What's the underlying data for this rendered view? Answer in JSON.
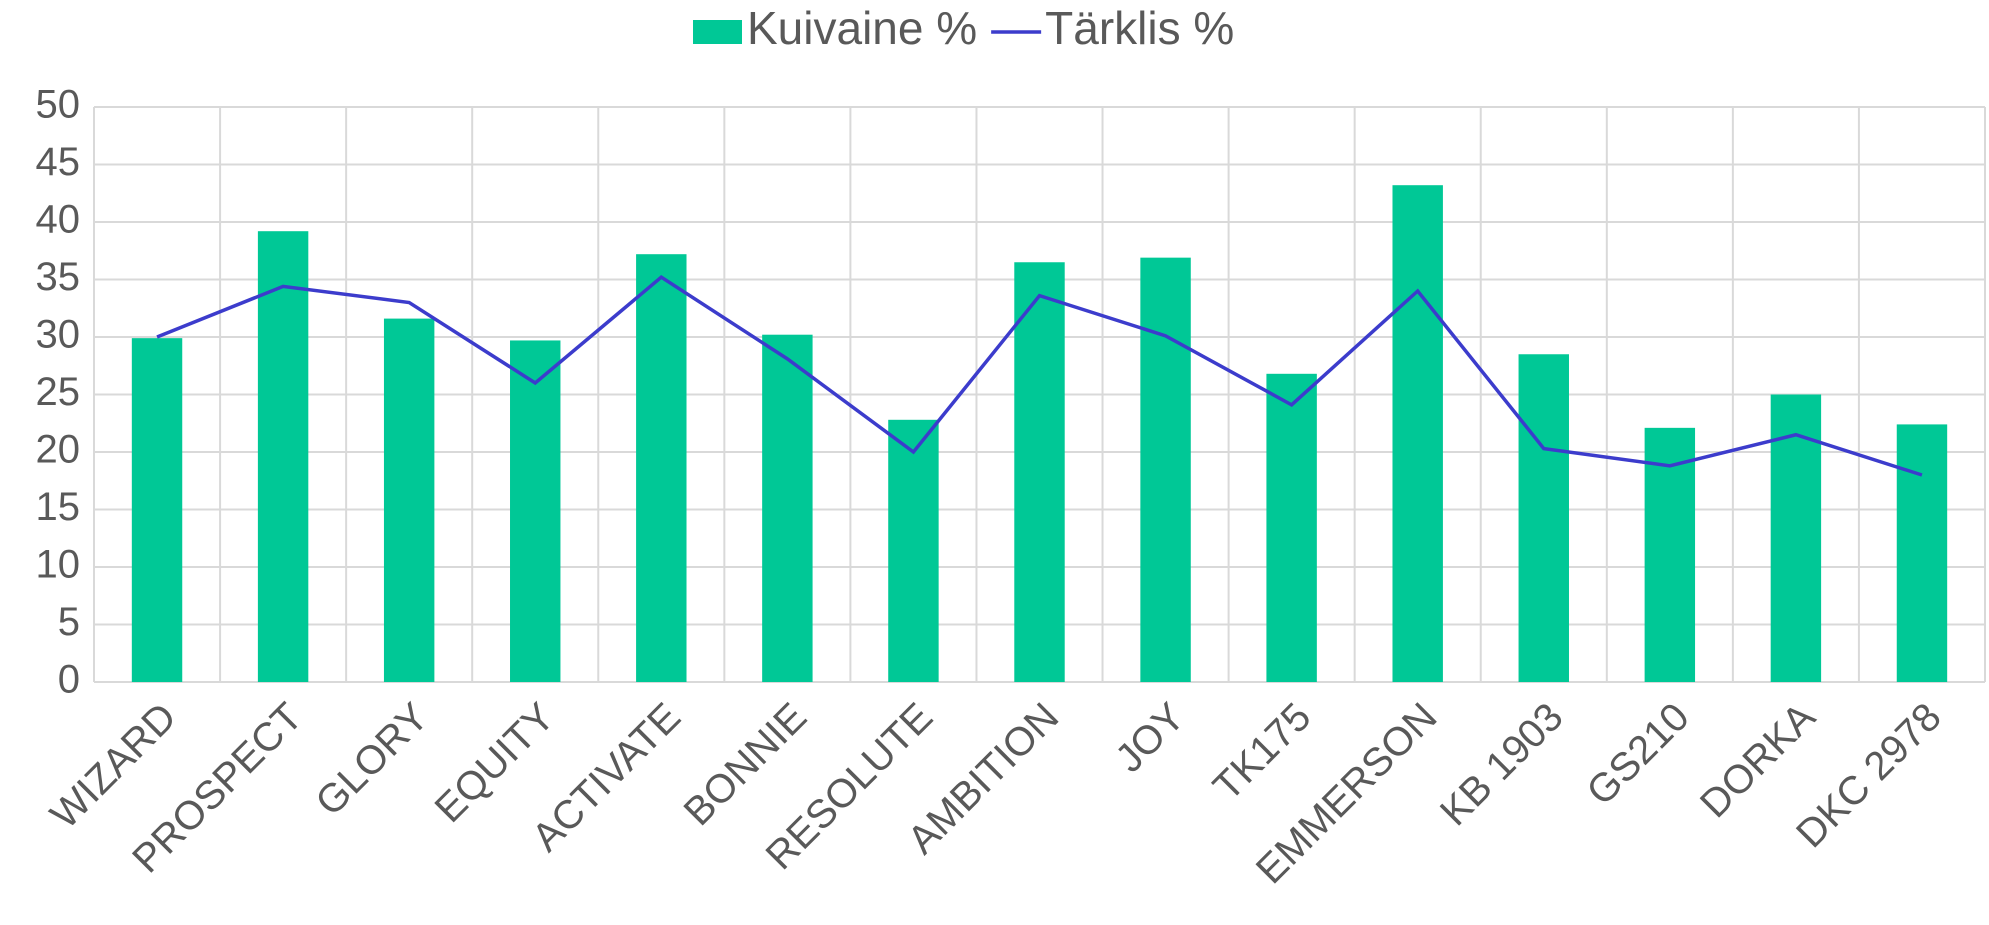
{
  "chart_data": {
    "type": "bar-line",
    "categories": [
      "WIZARD",
      "PROSPECT",
      "GLORY",
      "EQUITY",
      "ACTIVATE",
      "BONNIE",
      "RESOLUTE",
      "AMBITION",
      "JOY",
      "TK175",
      "EMMERSON",
      "KB 1903",
      "GS210",
      "DORKA",
      "DKC 2978"
    ],
    "series": [
      {
        "name": "Kuivaine %",
        "type": "bar",
        "color": "#00c896",
        "values": [
          29.9,
          39.2,
          31.6,
          29.7,
          37.2,
          30.2,
          22.8,
          36.5,
          36.9,
          26.8,
          43.2,
          28.5,
          22.1,
          25.0,
          22.4
        ]
      },
      {
        "name": "Tärklis %",
        "type": "line",
        "color": "#3c3ccc",
        "values": [
          30.0,
          34.4,
          33.0,
          26.0,
          35.2,
          28.1,
          20.0,
          33.6,
          30.1,
          24.1,
          34.0,
          20.3,
          18.8,
          21.5,
          18.0
        ]
      }
    ],
    "ylim": [
      0,
      50
    ],
    "yticks": [
      0,
      5,
      10,
      15,
      20,
      25,
      30,
      35,
      40,
      45,
      50
    ],
    "grid": true,
    "legend": "top"
  }
}
